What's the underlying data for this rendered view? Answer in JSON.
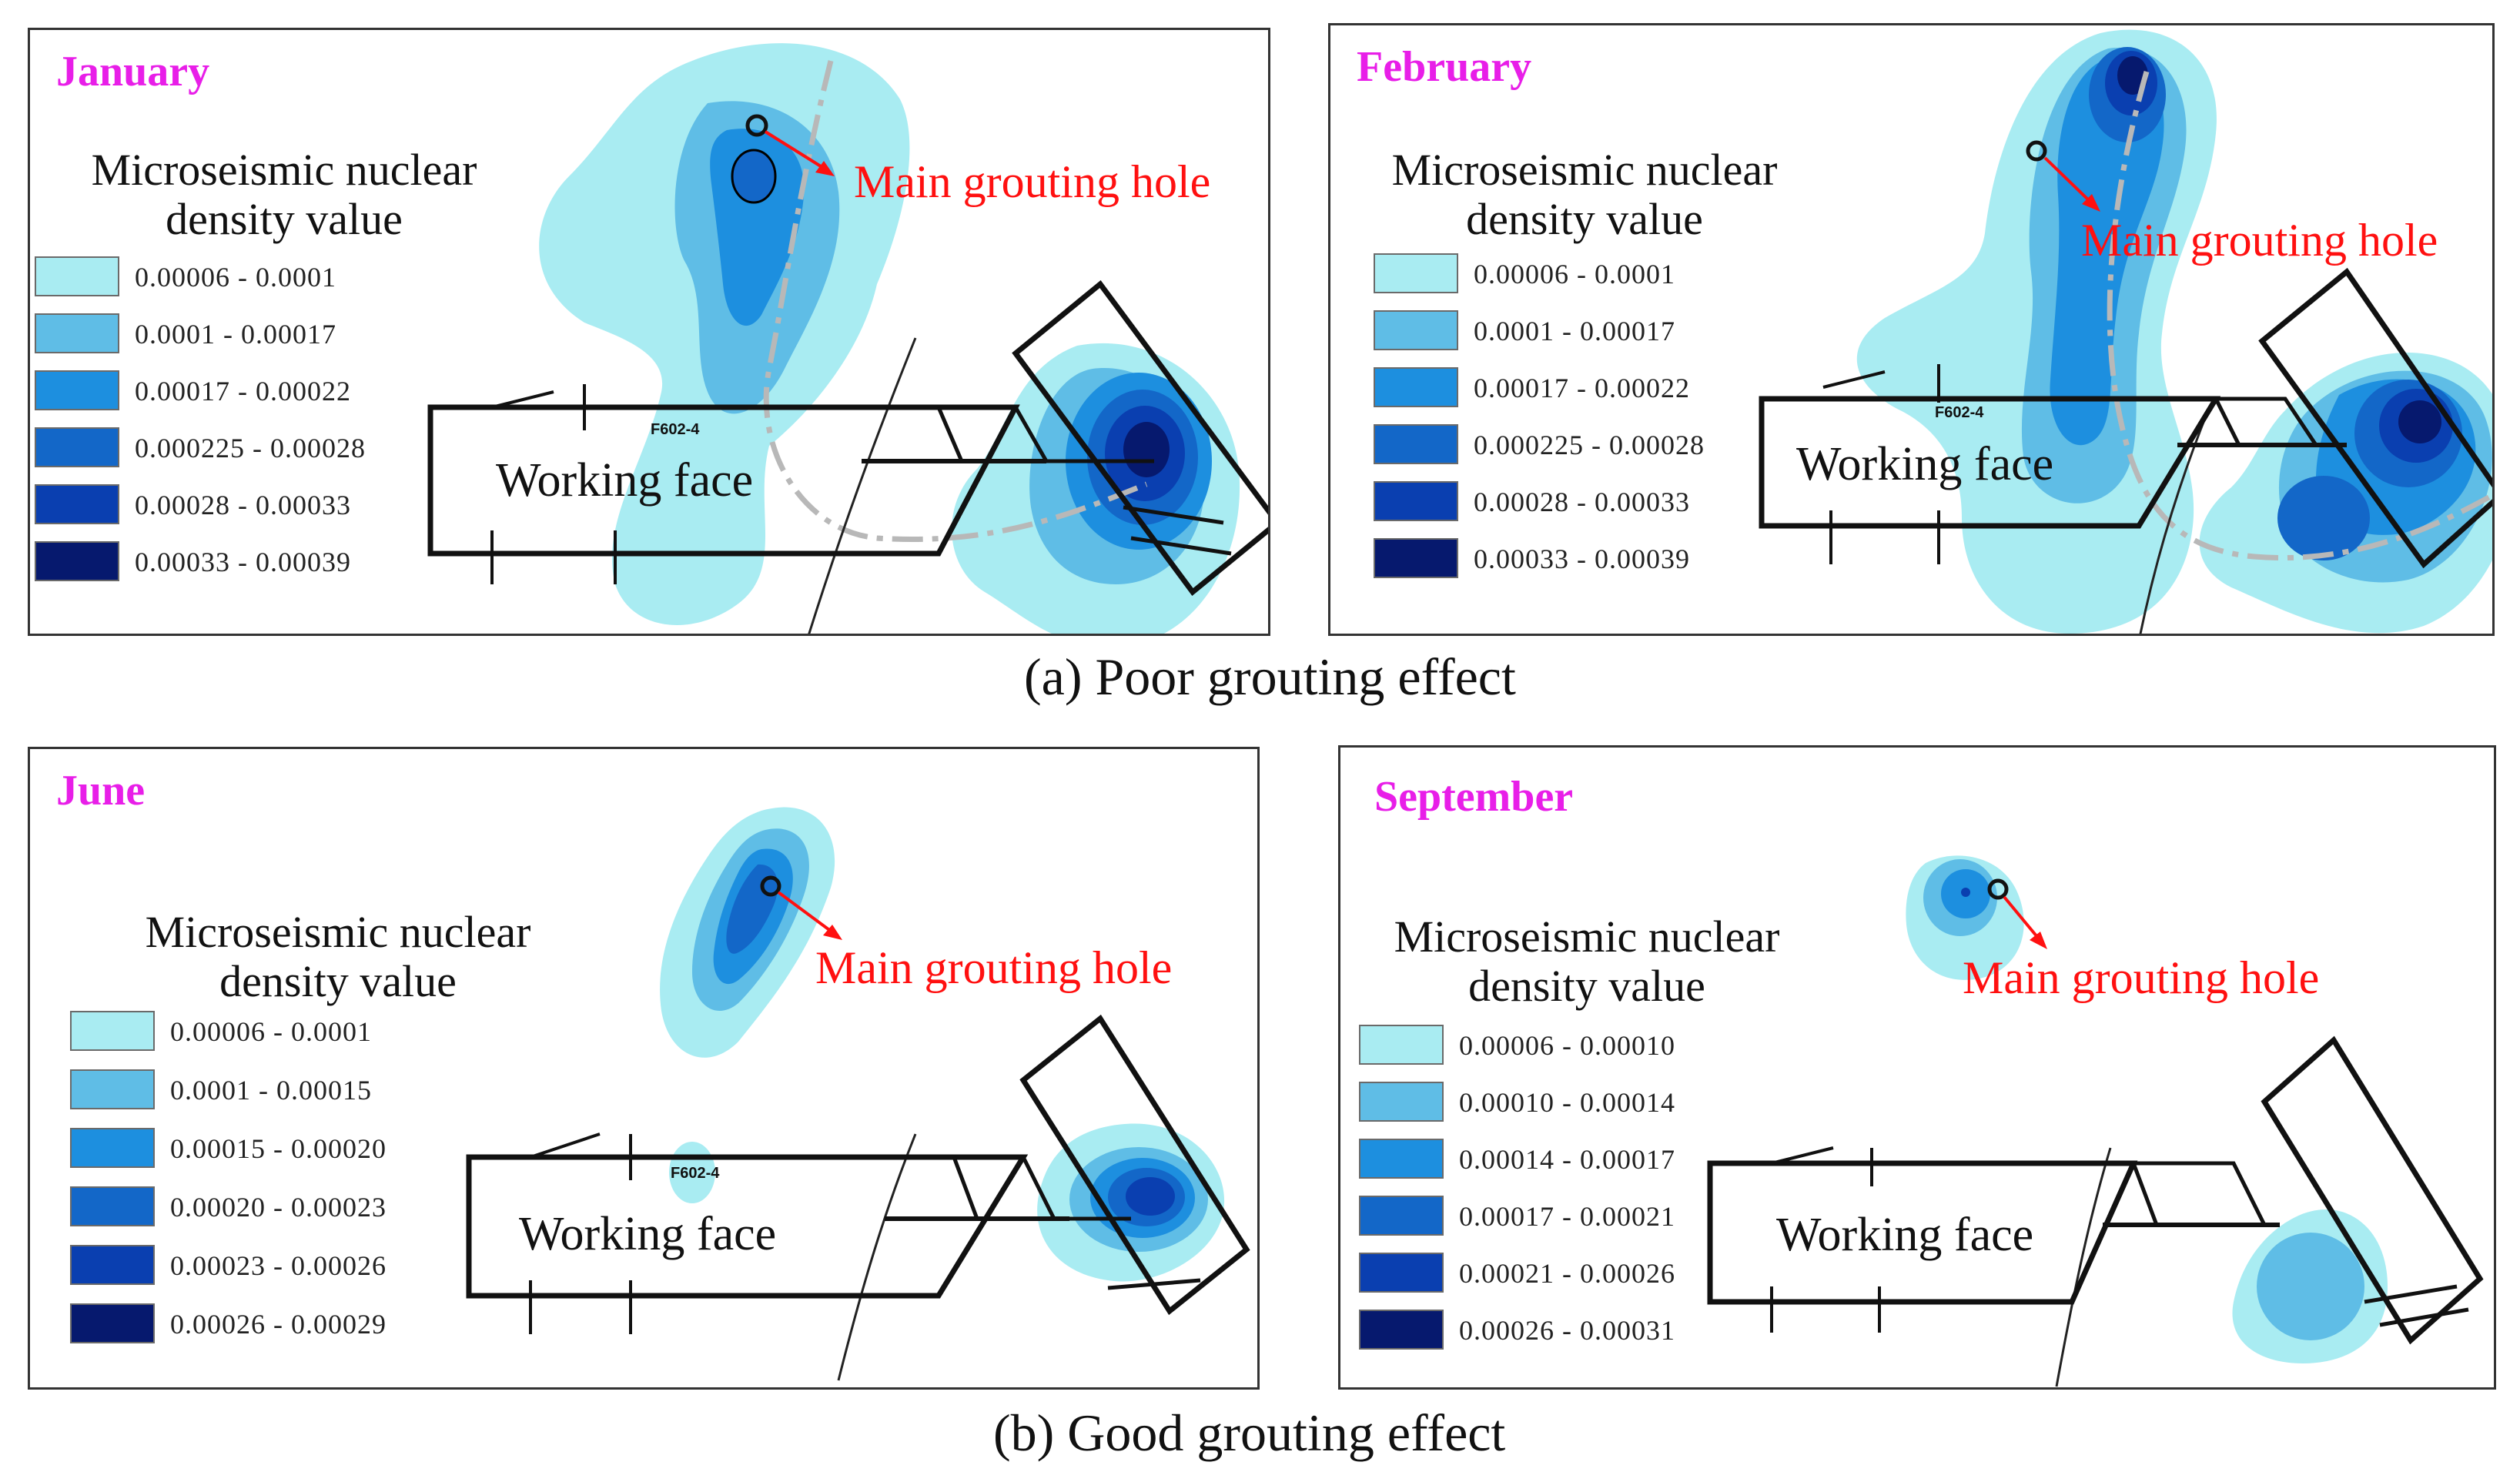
{
  "captions": {
    "a": "(a) Poor grouting effect",
    "b": "(b) Good grouting effect"
  },
  "colors": {
    "level1": "#a9ecf2",
    "level2": "#5fbde6",
    "level3": "#1d8fdf",
    "level4": "#1367c8",
    "level5": "#0a3fb0",
    "level6": "#06196e",
    "month_label": "#e81ee8",
    "hole_label": "#ff1010"
  },
  "panels": [
    {
      "id": "january",
      "month": "January",
      "legend_title_line1": "Microseismic nuclear",
      "legend_title_line2": "density value",
      "legend": [
        "0.00006 - 0.0001",
        "0.0001 - 0.00017",
        "0.00017 - 0.00022",
        "0.000225 - 0.00028",
        "0.00028 - 0.00033",
        "0.00033 - 0.00039"
      ],
      "hole_label": "Main grouting hole",
      "working_face": "Working face",
      "fault": "F602-4"
    },
    {
      "id": "february",
      "month": "February",
      "legend_title_line1": "Microseismic nuclear",
      "legend_title_line2": "density value",
      "legend": [
        "0.00006 - 0.0001",
        "0.0001 - 0.00017",
        "0.00017 - 0.00022",
        "0.000225 - 0.00028",
        "0.00028 - 0.00033",
        "0.00033 - 0.00039"
      ],
      "hole_label": "Main grouting hole",
      "working_face": "Working face",
      "fault": "F602-4"
    },
    {
      "id": "june",
      "month": "June",
      "legend_title_line1": "Microseismic nuclear",
      "legend_title_line2": "density value",
      "legend": [
        "0.00006 - 0.0001",
        "0.0001 - 0.00015",
        "0.00015 - 0.00020",
        "0.00020 - 0.00023",
        "0.00023 - 0.00026",
        "0.00026 - 0.00029"
      ],
      "hole_label": "Main grouting hole",
      "working_face": "Working face",
      "fault": "F602-4"
    },
    {
      "id": "september",
      "month": "September",
      "legend_title_line1": "Microseismic nuclear",
      "legend_title_line2": "density value",
      "legend": [
        "0.00006 - 0.00010",
        "0.00010 - 0.00014",
        "0.00014 - 0.00017",
        "0.00017 - 0.00021",
        "0.00021 - 0.00026",
        "0.00026 - 0.00031"
      ],
      "hole_label": "Main grouting hole",
      "working_face": "Working face",
      "fault": ""
    }
  ]
}
